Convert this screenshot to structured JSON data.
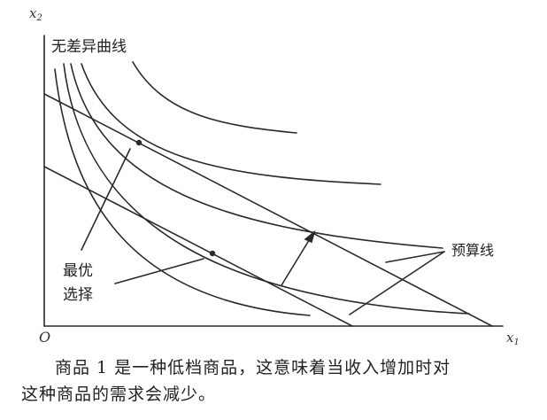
{
  "axes": {
    "y_label": "x",
    "y_sub": "2",
    "x_label": "x",
    "x_sub": "1",
    "origin": "O"
  },
  "labels": {
    "indifference_curves": "无差异曲线",
    "budget_lines": "预算线",
    "optimal_choice_line1": "最优",
    "optimal_choice_line2": "选择"
  },
  "caption": {
    "line1": "商品 1 是一种低档商品，这意味着当收入增加时对",
    "line2": "这种商品的需求会减少。"
  },
  "colors": {
    "ink": "#2a2a2a",
    "background": "#ffffff"
  }
}
